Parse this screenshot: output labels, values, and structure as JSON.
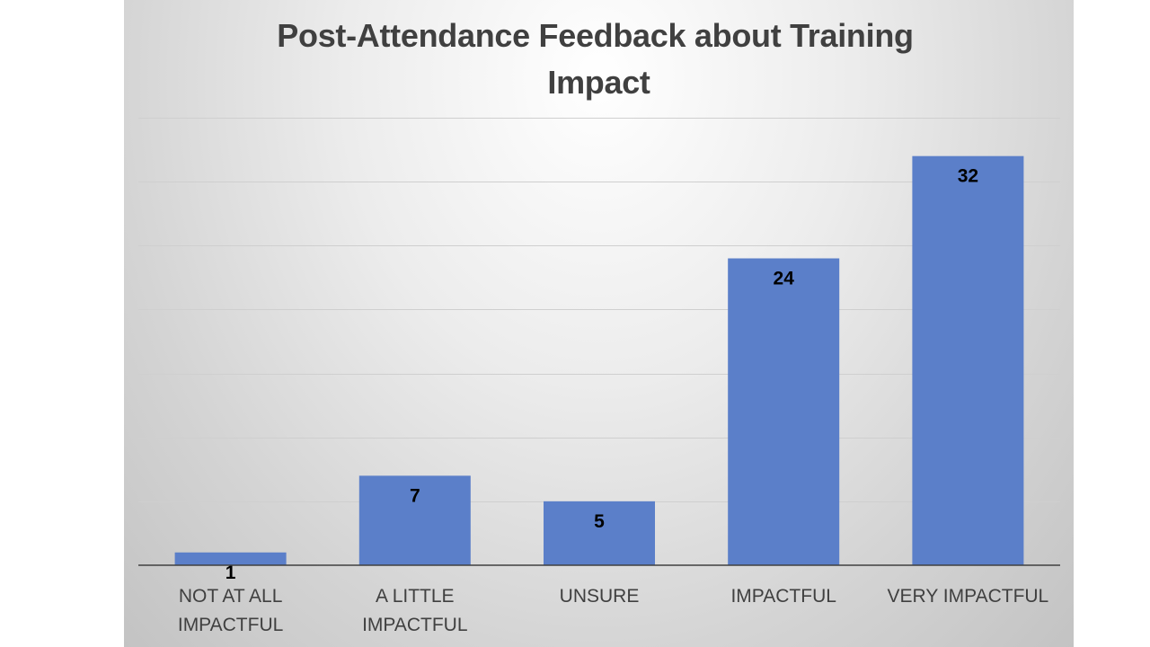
{
  "chart_data": {
    "type": "bar",
    "title": "Post-Attendance Feedback about Training Impact",
    "title_lines": [
      "Post-Attendance Feedback about Training",
      "Impact"
    ],
    "categories": [
      "NOT AT ALL IMPACTFUL",
      "A LITTLE IMPACTFUL",
      "UNSURE",
      "IMPACTFUL",
      "VERY IMPACTFUL"
    ],
    "category_lines": [
      [
        "NOT AT ALL",
        "IMPACTFUL"
      ],
      [
        "A LITTLE",
        "IMPACTFUL"
      ],
      [
        "UNSURE"
      ],
      [
        "IMPACTFUL"
      ],
      [
        "VERY IMPACTFUL"
      ]
    ],
    "values": [
      1,
      7,
      5,
      24,
      32
    ],
    "ylim": [
      0,
      35
    ],
    "grid": true,
    "legend": "none",
    "bar_color": "#5b7fc9"
  }
}
